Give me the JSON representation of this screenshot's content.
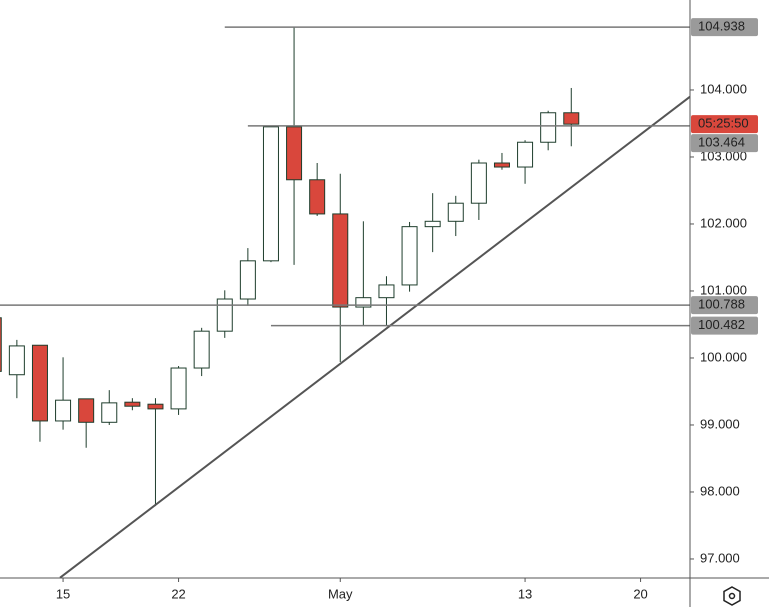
{
  "chart_data": {
    "type": "candlestick",
    "x": [
      -3,
      -2,
      -1,
      0,
      1,
      2,
      3,
      4,
      5,
      6,
      7,
      8,
      9,
      10,
      11,
      12,
      13,
      14,
      15,
      16,
      17,
      18,
      19,
      20,
      21,
      22
    ],
    "open": [
      100.6,
      99.75,
      100.19,
      99.06,
      99.39,
      99.04,
      99.34,
      99.31,
      99.24,
      99.85,
      100.4,
      100.88,
      101.45,
      103.45,
      102.66,
      102.15,
      100.76,
      100.9,
      101.09,
      101.96,
      102.04,
      102.31,
      102.91,
      102.85,
      103.22,
      103.66
    ],
    "high": [
      100.6,
      100.27,
      100.19,
      100.01,
      99.39,
      99.52,
      99.4,
      99.4,
      99.88,
      100.45,
      101.01,
      101.64,
      103.45,
      104.94,
      102.91,
      102.75,
      102.04,
      101.22,
      102.03,
      102.46,
      102.42,
      102.96,
      103.06,
      103.25,
      103.69,
      104.03
    ],
    "low": [
      99.75,
      99.4,
      98.75,
      98.93,
      98.66,
      99.0,
      99.22,
      97.79,
      99.15,
      99.73,
      100.3,
      100.78,
      101.43,
      101.39,
      102.12,
      99.94,
      100.48,
      100.48,
      100.99,
      101.58,
      101.82,
      102.06,
      102.81,
      102.6,
      103.1,
      103.16
    ],
    "close": [
      99.8,
      100.18,
      99.06,
      99.37,
      99.04,
      99.33,
      99.28,
      99.24,
      99.85,
      100.4,
      100.88,
      101.45,
      103.45,
      102.66,
      102.15,
      100.76,
      100.9,
      101.09,
      101.96,
      102.04,
      102.31,
      102.91,
      102.85,
      103.22,
      103.66,
      103.49
    ],
    "up_color": "#ffffff",
    "down_color": "#d9473c",
    "edge_color": "#1e3d2c",
    "xlim": [
      -2.73,
      27.14
    ],
    "ylim": [
      96.716,
      105.343
    ],
    "xticks": [
      {
        "value": 0,
        "label": "15"
      },
      {
        "value": 5,
        "label": "22"
      },
      {
        "value": 12,
        "label": "May"
      },
      {
        "value": 20,
        "label": "13"
      },
      {
        "value": 25,
        "label": "20"
      }
    ],
    "yticks": [
      {
        "value": 97,
        "label": "97.000"
      },
      {
        "value": 98,
        "label": "98.000"
      },
      {
        "value": 99,
        "label": "99.000"
      },
      {
        "value": 100,
        "label": "100.000"
      },
      {
        "value": 101,
        "label": "101.000"
      },
      {
        "value": 102,
        "label": "102.000"
      },
      {
        "value": 103,
        "label": "103.000"
      },
      {
        "value": 104,
        "label": "104.000"
      }
    ],
    "levels": [
      {
        "value": 104.938,
        "start_x": 7
      },
      {
        "value": 103.464,
        "start_x": 8
      },
      {
        "value": 100.788,
        "start_x": -2.73
      },
      {
        "value": 100.482,
        "start_x": 9
      }
    ],
    "trendline": {
      "x": [
        -0.13,
        27.14
      ],
      "y": [
        96.72,
        103.9
      ]
    },
    "countdown": "05:25:50"
  }
}
